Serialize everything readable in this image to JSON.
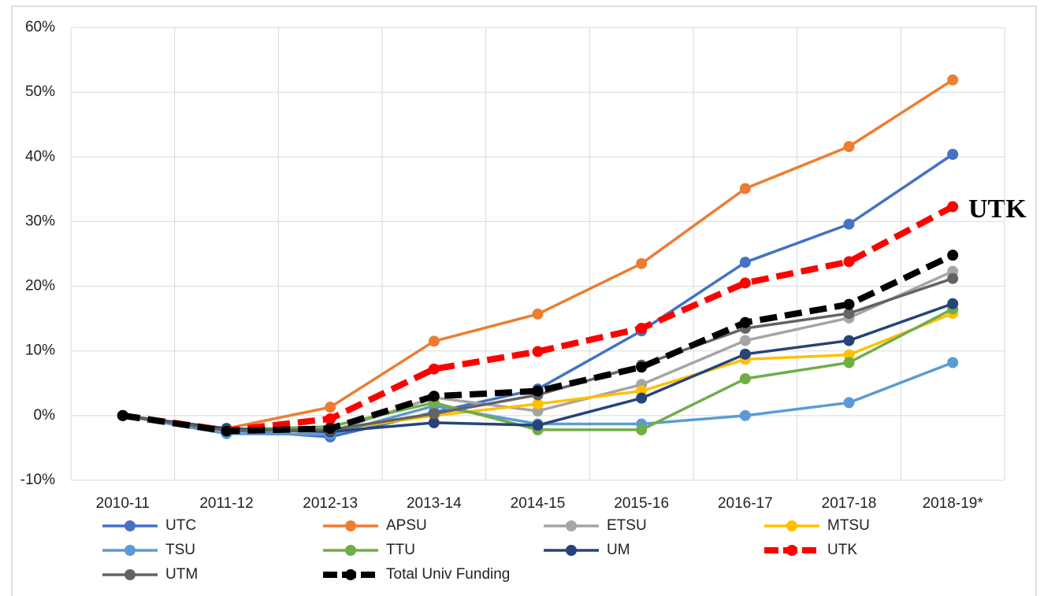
{
  "chart_data": {
    "type": "line",
    "annotation": "UTK",
    "categories": [
      "2010-11",
      "2011-12",
      "2012-13",
      "2013-14",
      "2014-15",
      "2015-16",
      "2016-17",
      "2017-18",
      "2018-19*"
    ],
    "ylim": [
      -10,
      60
    ],
    "yticks": [
      {
        "value": -10,
        "label": "-10%"
      },
      {
        "value": 0,
        "label": "0%"
      },
      {
        "value": 10,
        "label": "10%"
      },
      {
        "value": 20,
        "label": "20%"
      },
      {
        "value": 30,
        "label": "30%"
      },
      {
        "value": 40,
        "label": "40%"
      },
      {
        "value": 50,
        "label": "50%"
      },
      {
        "value": 60,
        "label": "60%"
      }
    ],
    "grid": true,
    "legend": "bottom",
    "series": [
      {
        "name": "UTC",
        "color": "#4472c4",
        "line_style": "solid",
        "values": [
          0,
          -2.2,
          -3.3,
          0.5,
          4.1,
          13.1,
          23.7,
          29.6,
          40.4
        ]
      },
      {
        "name": "APSU",
        "color": "#ed7d31",
        "line_style": "solid",
        "values": [
          0,
          -2.0,
          1.3,
          11.5,
          15.7,
          23.5,
          35.1,
          41.6,
          51.9
        ]
      },
      {
        "name": "ETSU",
        "color": "#a5a5a5",
        "line_style": "solid",
        "values": [
          0,
          -2.2,
          -2.5,
          2.8,
          0.7,
          4.8,
          11.6,
          15.1,
          22.3
        ]
      },
      {
        "name": "MTSU",
        "color": "#ffc000",
        "line_style": "solid",
        "values": [
          0,
          -2.2,
          -2.3,
          0,
          1.8,
          3.8,
          8.7,
          9.4,
          15.8
        ]
      },
      {
        "name": "TSU",
        "color": "#5b9bd5",
        "line_style": "solid",
        "values": [
          0,
          -2.8,
          -2.9,
          1.5,
          -1.3,
          -1.3,
          0,
          2.0,
          8.2
        ]
      },
      {
        "name": "TTU",
        "color": "#70ad47",
        "line_style": "solid",
        "values": [
          0,
          -2.2,
          -1.7,
          2.0,
          -2.2,
          -2.2,
          5.7,
          8.2,
          16.5
        ]
      },
      {
        "name": "UM",
        "color": "#264478",
        "line_style": "solid",
        "values": [
          0,
          -2.0,
          -2.5,
          -1.1,
          -1.5,
          2.7,
          9.5,
          11.6,
          17.3
        ]
      },
      {
        "name": "UTK",
        "color": "#ff0000",
        "line_style": "dashed",
        "values": [
          0,
          -2.3,
          -0.5,
          7.2,
          9.9,
          13.5,
          20.5,
          23.8,
          32.3
        ]
      },
      {
        "name": "UTM",
        "color": "#636363",
        "line_style": "solid",
        "values": [
          0,
          -2.3,
          -2.2,
          0.3,
          3.2,
          7.8,
          13.5,
          15.8,
          21.2
        ]
      },
      {
        "name": "Total Univ Funding",
        "color": "#000000",
        "line_style": "dashed",
        "values": [
          0,
          -2.4,
          -2.0,
          3.0,
          3.8,
          7.5,
          14.4,
          17.2,
          24.8
        ]
      }
    ]
  }
}
